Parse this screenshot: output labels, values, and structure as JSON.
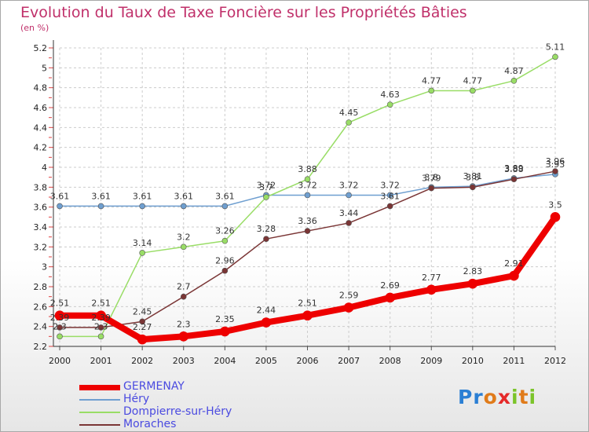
{
  "title": "Evolution du Taux de Taxe Foncière sur les Propriétés Bâties",
  "unit_label": "(en %)",
  "logo": {
    "letters": [
      "P",
      "r",
      "o",
      "x",
      "i",
      "t",
      "i"
    ],
    "colors": [
      "#2b7fd4",
      "#2b7fd4",
      "#e07b1a",
      "#e52a2a",
      "#7bc42a",
      "#e07b1a",
      "#7bc42a"
    ]
  },
  "chart_data": {
    "type": "line",
    "title": "Evolution du Taux de Taxe Foncière sur les Propriétés Bâties",
    "ylabel": "(en %)",
    "x": [
      "2000",
      "2001",
      "2002",
      "2003",
      "2004",
      "2005",
      "2006",
      "2007",
      "2008",
      "2009",
      "2010",
      "2011",
      "2012"
    ],
    "ylim": [
      2.2,
      5.2
    ],
    "yticks": [
      "2.2",
      "2.4",
      "2.6",
      "2.8",
      "3",
      "3.2",
      "3.4",
      "3.6",
      "3.8",
      "4",
      "4.2",
      "4.4",
      "4.6",
      "4.8",
      "5",
      "5.2"
    ],
    "legend_position": "bottom-left",
    "series": [
      {
        "name": "GERMENAY",
        "color": "#ee0000",
        "values": [
          2.51,
          2.51,
          2.27,
          2.3,
          2.35,
          2.44,
          2.51,
          2.59,
          2.69,
          2.77,
          2.83,
          2.91,
          3.5
        ],
        "labels": [
          "2.51",
          "2.51",
          "2.27",
          "2.3",
          "2.35",
          "2.44",
          "2.51",
          "2.59",
          "2.69",
          "2.77",
          "2.83",
          "2.91",
          "3.5"
        ]
      },
      {
        "name": "Héry",
        "color": "#6f9fd0",
        "values": [
          3.61,
          3.61,
          3.61,
          3.61,
          3.61,
          3.72,
          3.72,
          3.72,
          3.72,
          3.8,
          3.81,
          3.89,
          3.93
        ],
        "labels": [
          "3.61",
          "3.61",
          "3.61",
          "3.61",
          "3.61",
          "3.72",
          "3.72",
          "3.72",
          "3.72",
          "3.8",
          "3.81",
          "3.89",
          "3.93"
        ]
      },
      {
        "name": "Dompierre-sur-Héry",
        "color": "#99dd66",
        "values": [
          2.3,
          2.3,
          3.14,
          3.2,
          3.26,
          3.7,
          3.88,
          4.45,
          4.63,
          4.77,
          4.77,
          4.87,
          5.11
        ],
        "labels": [
          "2.3",
          "2.3",
          "3.14",
          "3.2",
          "3.26",
          "3.7",
          "3.88",
          "4.45",
          "4.63",
          "4.77",
          "4.77",
          "4.87",
          "5.11"
        ]
      },
      {
        "name": "Moraches",
        "color": "#7a3535",
        "values": [
          2.39,
          2.39,
          2.45,
          2.7,
          2.96,
          3.28,
          3.36,
          3.44,
          3.61,
          3.79,
          3.8,
          3.88,
          3.96
        ],
        "labels": [
          "2.39",
          "2.39",
          "2.45",
          "2.7",
          "2.96",
          "3.28",
          "3.36",
          "3.44",
          "3.61",
          "3.79",
          "3.8",
          "3.88",
          "3.96"
        ]
      }
    ]
  }
}
